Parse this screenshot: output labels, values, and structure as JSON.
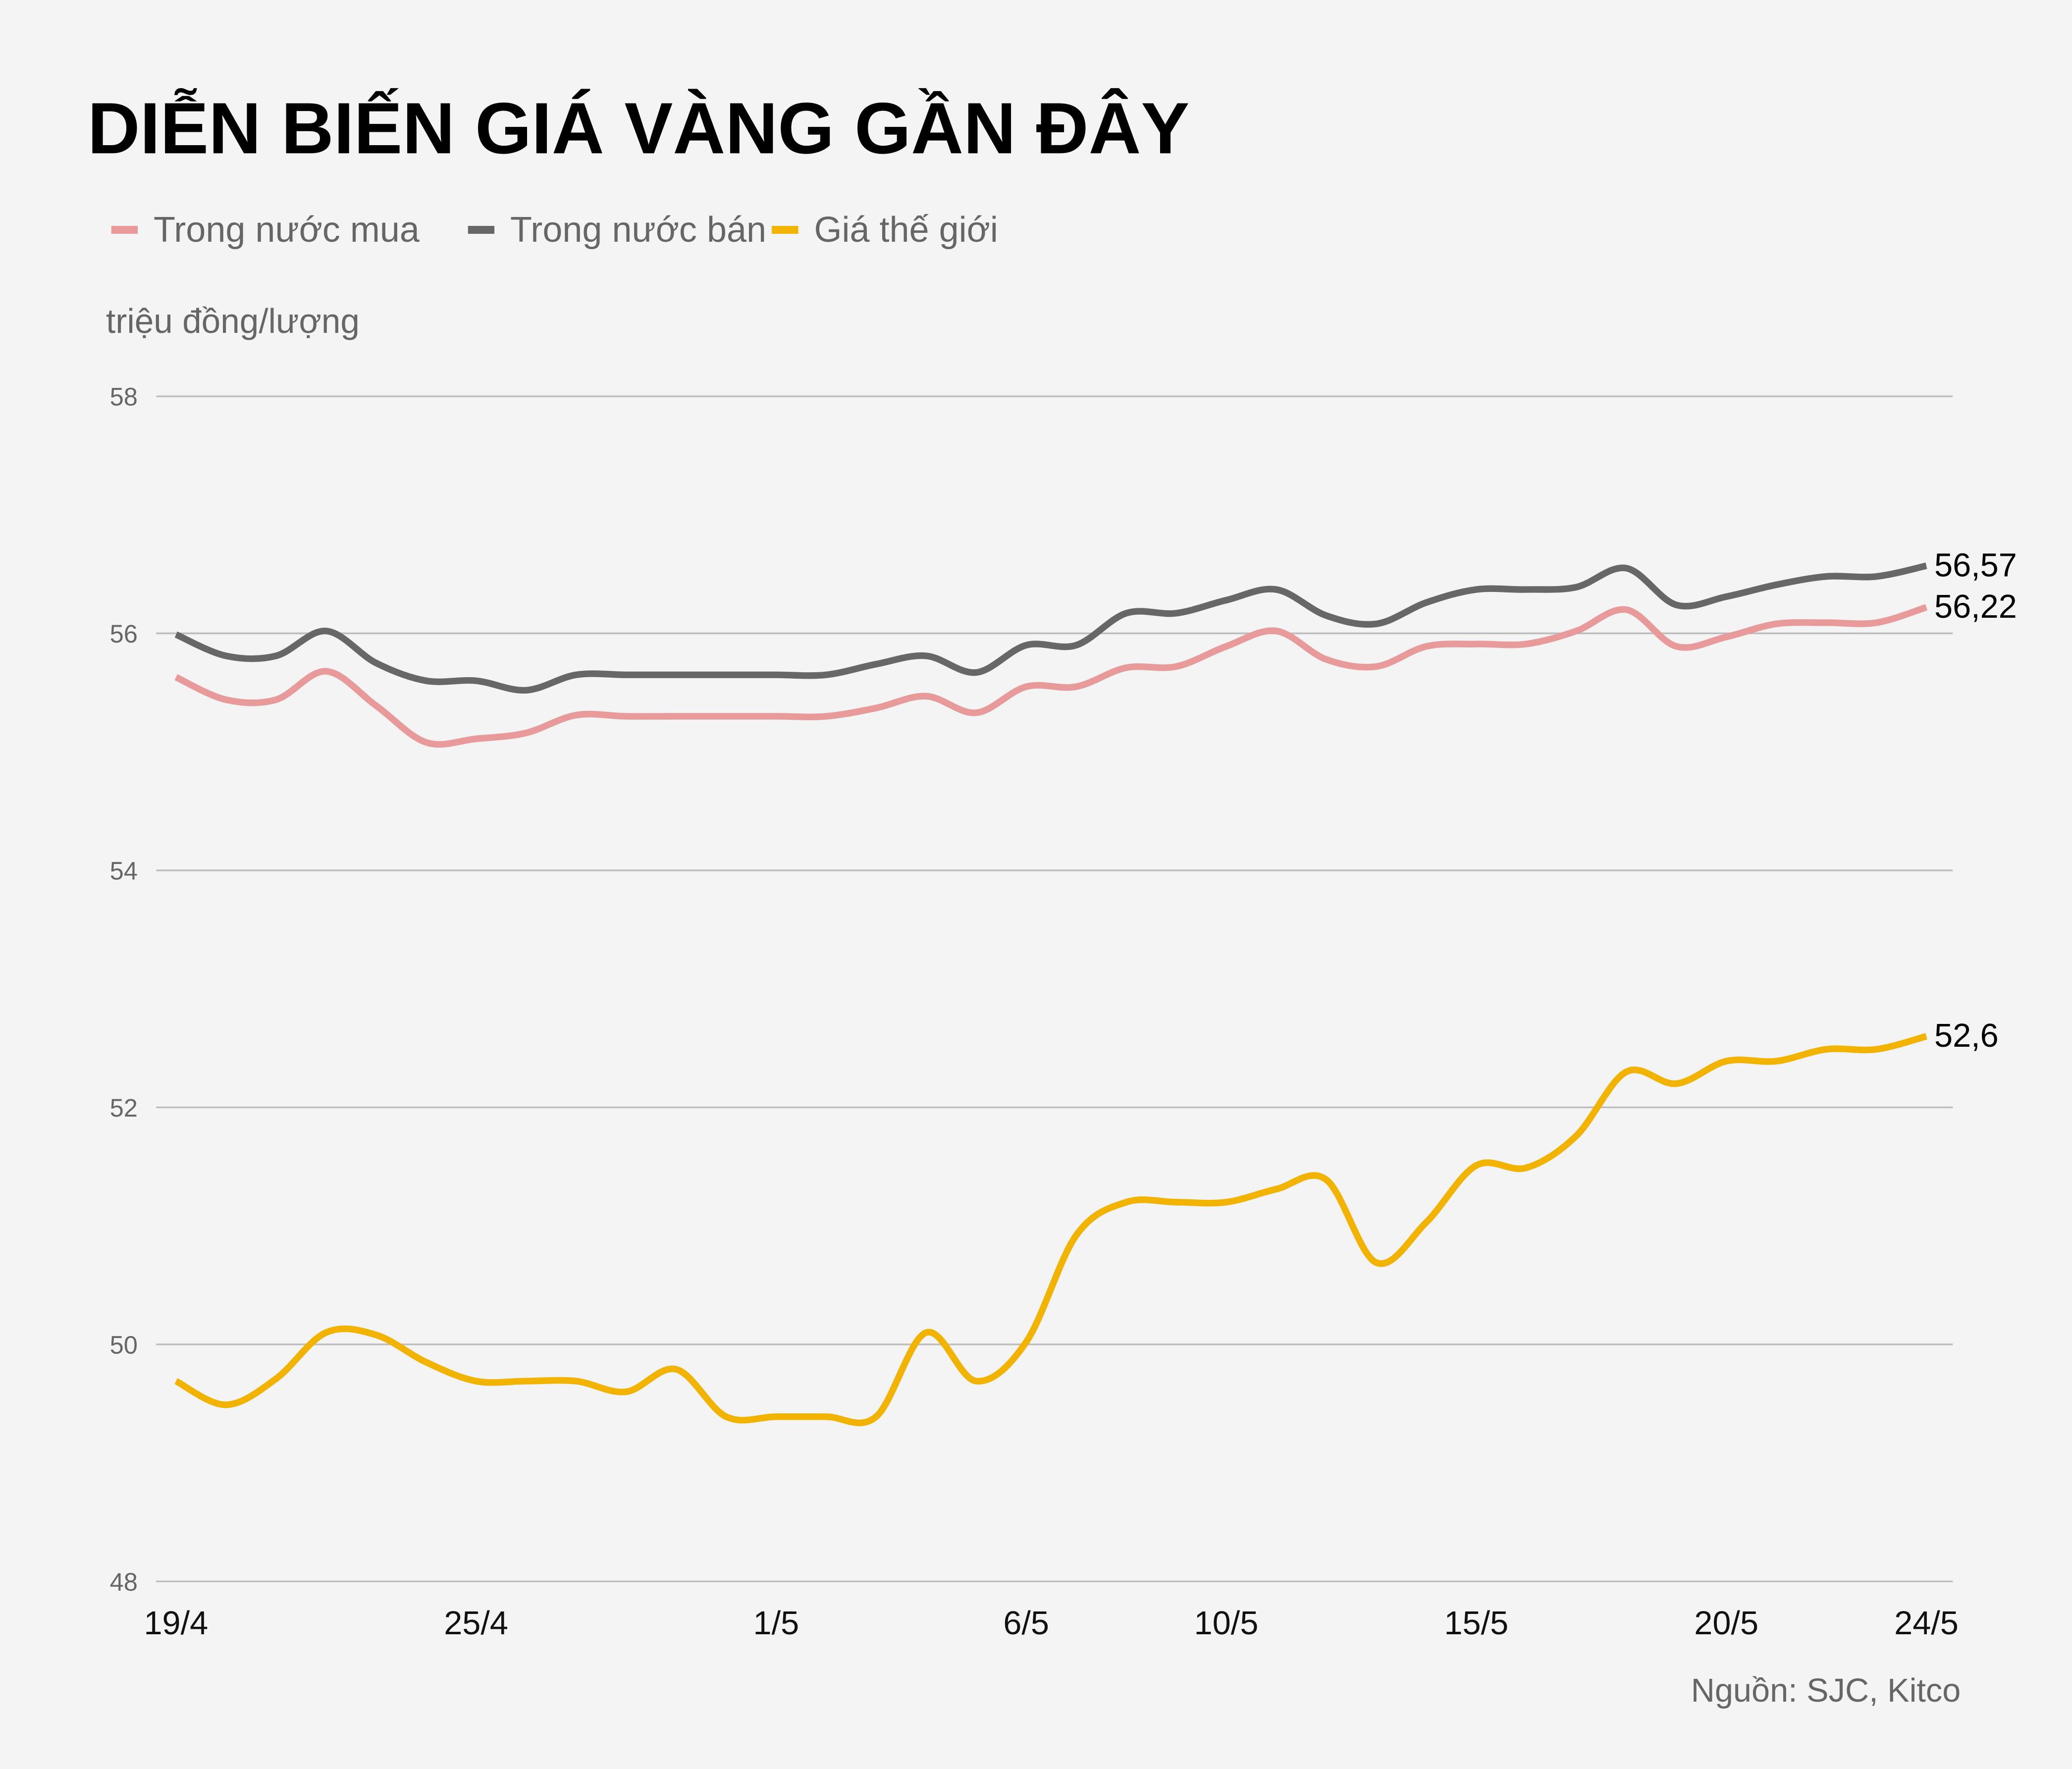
{
  "chart_data": {
    "type": "line",
    "title": "DIỄN BIẾN GIÁ VÀNG GẦN ĐÂY",
    "ylabel": "triệu đồng/lượng",
    "xlabel": "",
    "source": "Nguồn: SJC, Kitco",
    "ylim": [
      48,
      58
    ],
    "yticks": [
      "48",
      "50",
      "52",
      "54",
      "56",
      "58"
    ],
    "grid": true,
    "legend_position": "top-left",
    "x_dates": [
      "19/4",
      "20/4",
      "21/4",
      "22/4",
      "23/4",
      "24/4",
      "25/4",
      "26/4",
      "27/4",
      "28/4",
      "29/4",
      "30/4",
      "1/5",
      "2/5",
      "3/5",
      "4/5",
      "5/5",
      "6/5",
      "7/5",
      "8/5",
      "9/5",
      "10/5",
      "11/5",
      "12/5",
      "13/5",
      "14/5",
      "15/5",
      "16/5",
      "17/5",
      "18/5",
      "19/5",
      "20/5",
      "21/5",
      "22/5",
      "23/5",
      "24/5"
    ],
    "xticks": [
      "19/4",
      "25/4",
      "1/5",
      "6/5",
      "10/5",
      "15/5",
      "20/5",
      "24/5"
    ],
    "series": [
      {
        "name": "Trong nước mua",
        "color": "#e89a9a",
        "end_label": "56,22",
        "values": [
          55.63,
          55.44,
          55.44,
          55.68,
          55.39,
          55.08,
          55.11,
          55.16,
          55.31,
          55.3,
          55.3,
          55.3,
          55.3,
          55.3,
          55.37,
          55.47,
          55.33,
          55.55,
          55.55,
          55.71,
          55.72,
          55.89,
          56.02,
          55.78,
          55.72,
          55.89,
          55.91,
          55.91,
          56.02,
          56.2,
          55.89,
          55.97,
          56.08,
          56.09,
          56.09,
          56.22
        ]
      },
      {
        "name": "Trong nước bán",
        "color": "#676767",
        "end_label": "56,57",
        "values": [
          55.99,
          55.81,
          55.81,
          56.02,
          55.75,
          55.6,
          55.6,
          55.52,
          55.65,
          55.65,
          55.65,
          55.65,
          55.65,
          55.65,
          55.74,
          55.81,
          55.67,
          55.9,
          55.9,
          56.17,
          56.17,
          56.28,
          56.37,
          56.15,
          56.08,
          56.26,
          56.37,
          56.37,
          56.39,
          56.55,
          56.24,
          56.31,
          56.41,
          56.48,
          56.48,
          56.57
        ]
      },
      {
        "name": "Giá thế giới",
        "color": "#f2b300",
        "end_label": "52,6",
        "values": [
          49.69,
          49.49,
          49.71,
          50.1,
          50.08,
          49.85,
          49.69,
          49.69,
          49.69,
          49.6,
          49.79,
          49.39,
          49.39,
          49.39,
          49.39,
          50.1,
          49.69,
          50.02,
          50.92,
          51.2,
          51.2,
          51.2,
          51.31,
          51.39,
          50.69,
          51.03,
          51.51,
          51.49,
          51.76,
          52.3,
          52.2,
          52.39,
          52.39,
          52.49,
          52.49,
          52.6
        ]
      }
    ]
  }
}
